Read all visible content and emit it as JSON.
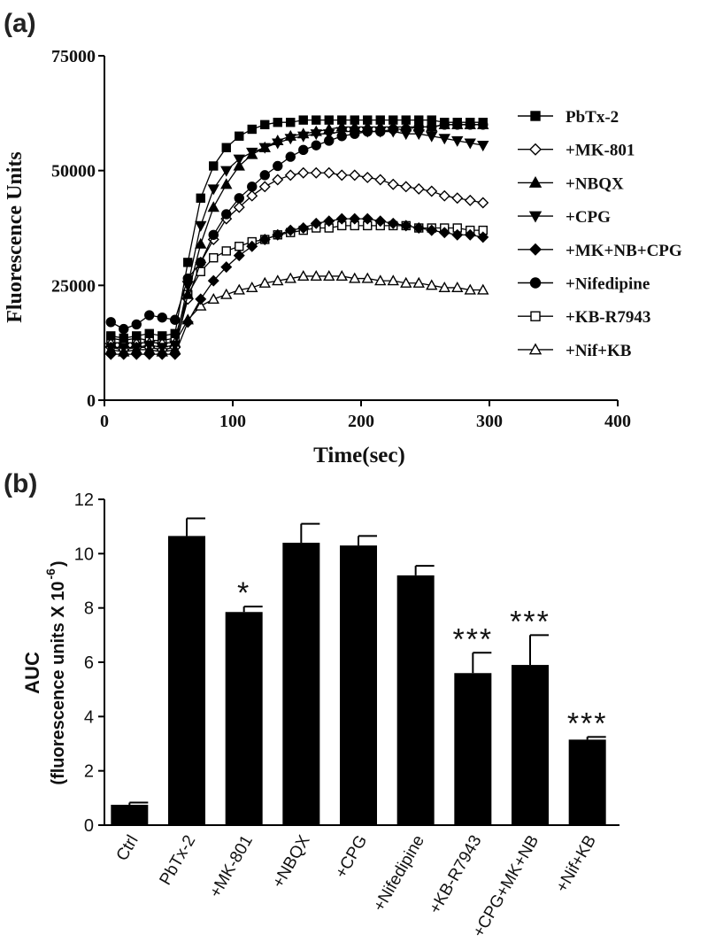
{
  "chart_data": [
    {
      "panel": "(a)",
      "type": "line",
      "xlabel": "Time(sec)",
      "ylabel": "Fluorescence Units",
      "xlim": [
        0,
        400
      ],
      "ylim": [
        0,
        75000
      ],
      "x_ticks": [
        "0",
        "100",
        "200",
        "300",
        "400"
      ],
      "y_ticks": [
        "0",
        "25000",
        "50000",
        "75000"
      ],
      "legend_position": "right",
      "x": [
        5,
        15,
        25,
        35,
        45,
        55,
        65,
        75,
        85,
        95,
        105,
        115,
        125,
        135,
        145,
        155,
        165,
        175,
        185,
        195,
        205,
        215,
        225,
        235,
        245,
        255,
        265,
        275,
        285,
        295
      ],
      "series": [
        {
          "name": "PbTx-2",
          "marker": "square-filled",
          "values": [
            14000,
            13500,
            14000,
            14500,
            14000,
            14500,
            30000,
            44000,
            51000,
            55000,
            57500,
            59000,
            60000,
            60500,
            60500,
            61000,
            61000,
            61000,
            61000,
            61000,
            61000,
            61000,
            61000,
            61000,
            61000,
            61000,
            60500,
            60500,
            60500,
            60500
          ]
        },
        {
          "name": "+MK-801",
          "marker": "diamond-open",
          "values": [
            11500,
            11000,
            11500,
            11500,
            11000,
            11500,
            22000,
            30000,
            35000,
            39500,
            42000,
            44500,
            46500,
            48000,
            49000,
            49500,
            49500,
            49500,
            49000,
            49000,
            48500,
            48000,
            47000,
            46500,
            46000,
            45500,
            44500,
            44000,
            43500,
            43000
          ]
        },
        {
          "name": "+NBQX",
          "marker": "triangle-up-filled",
          "values": [
            11000,
            10500,
            11000,
            11000,
            10500,
            11000,
            23000,
            34000,
            42000,
            47000,
            51000,
            53500,
            55000,
            56500,
            57500,
            58000,
            58500,
            59000,
            59500,
            59500,
            59500,
            59500,
            59500,
            59500,
            59500,
            59500,
            60000,
            60000,
            60000,
            60000
          ]
        },
        {
          "name": "+CPG",
          "marker": "triangle-down-filled",
          "values": [
            11500,
            11500,
            11500,
            12000,
            11500,
            12000,
            25000,
            38000,
            46000,
            50000,
            52500,
            54000,
            55000,
            56000,
            57000,
            57500,
            58000,
            58000,
            58500,
            58500,
            58500,
            58500,
            58500,
            58000,
            58000,
            57500,
            57000,
            56500,
            56000,
            55500
          ]
        },
        {
          "name": "+MK+NB+CPG",
          "marker": "diamond-filled",
          "values": [
            10000,
            10000,
            10000,
            10000,
            10000,
            10000,
            17000,
            22000,
            26000,
            29000,
            31500,
            33500,
            35000,
            36000,
            37000,
            37500,
            38500,
            39000,
            39500,
            39500,
            39500,
            39000,
            38500,
            38000,
            37500,
            37000,
            36500,
            36000,
            36000,
            35500
          ]
        },
        {
          "name": "+Nifedipine",
          "marker": "circle-filled",
          "values": [
            17000,
            15500,
            16500,
            18500,
            18000,
            17500,
            26500,
            30000,
            36000,
            40500,
            44000,
            46500,
            49000,
            51000,
            53000,
            54500,
            55500,
            56500,
            57500,
            58000,
            58500,
            58500,
            59000,
            59000,
            59500,
            59500,
            60000,
            60000,
            60000,
            60000
          ]
        },
        {
          "name": "+KB-R7943",
          "marker": "square-open",
          "values": [
            13500,
            13000,
            13500,
            13000,
            13000,
            13500,
            23000,
            28000,
            31000,
            32500,
            33500,
            34500,
            35000,
            36000,
            36500,
            37000,
            37500,
            37500,
            38000,
            38000,
            38000,
            38000,
            38000,
            38000,
            37500,
            37500,
            37500,
            37500,
            37000,
            37000
          ]
        },
        {
          "name": "+Nif+KB",
          "marker": "triangle-up-open",
          "values": [
            12500,
            12500,
            12500,
            12500,
            12500,
            12500,
            17500,
            20500,
            22000,
            23000,
            24000,
            24500,
            25500,
            26000,
            26500,
            27000,
            27000,
            27000,
            27000,
            26500,
            26500,
            26000,
            26000,
            25500,
            25500,
            25000,
            24500,
            24500,
            24000,
            24000
          ]
        }
      ]
    },
    {
      "panel": "(b)",
      "type": "bar",
      "ylabel": "AUC",
      "ylabel2": "(fluorescence units X 10",
      "ylabel2_sup": "-6",
      "ylabel2_close": ")",
      "ylim": [
        0,
        12
      ],
      "y_ticks": [
        "0",
        "2",
        "4",
        "6",
        "8",
        "10",
        "12"
      ],
      "categories": [
        "Ctrl",
        "PbTx-2",
        "+MK-801",
        "+NBQX",
        "+CPG",
        "+Nifedipine",
        "+KB-R7943",
        "+CPG+MK+NB",
        "+Nif+KB"
      ],
      "values": [
        0.75,
        10.65,
        7.85,
        10.4,
        10.3,
        9.2,
        5.6,
        5.9,
        3.15
      ],
      "errors": [
        0.08,
        0.65,
        0.2,
        0.7,
        0.35,
        0.35,
        0.75,
        1.1,
        0.1
      ],
      "annotations": [
        "",
        "",
        "*",
        "",
        "",
        "",
        "***",
        "***",
        "***"
      ]
    }
  ]
}
